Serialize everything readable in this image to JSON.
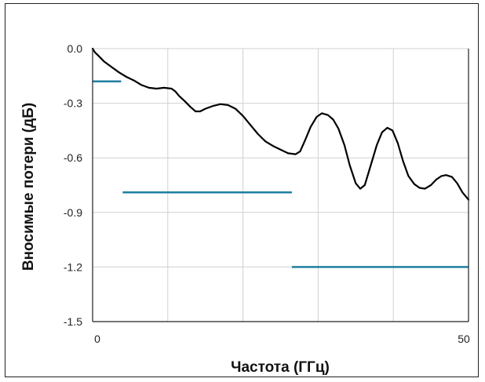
{
  "chart_data": {
    "type": "line",
    "title": "",
    "xlabel": "Частота (ГГц)",
    "ylabel": "Вносимые потери (дБ)",
    "xlim": [
      0,
      50
    ],
    "ylim": [
      -1.5,
      0.0
    ],
    "x_ticks": [
      0,
      50
    ],
    "x_tick_labels": [
      "0",
      "50"
    ],
    "y_ticks": [
      0.0,
      -0.3,
      -0.6,
      -0.9,
      -1.2,
      -1.5
    ],
    "y_tick_labels": [
      "0.0",
      "-0.3",
      "-0.6",
      "-0.9",
      "-1.2",
      "-1.5"
    ],
    "x_gridlines": [
      10,
      20,
      30,
      40
    ],
    "grid": true,
    "legend": "none",
    "colors": {
      "curve": "#000000",
      "limit": "#1f7fa0",
      "grid": "#d0d0d0",
      "axis": "#222222"
    },
    "series": [
      {
        "points": [
          [
            0,
            0.0
          ],
          [
            0.3,
            -0.02
          ],
          [
            0.8,
            -0.04
          ],
          [
            1.5,
            -0.07
          ],
          [
            2.5,
            -0.1
          ],
          [
            3.5,
            -0.13
          ],
          [
            4.5,
            -0.155
          ],
          [
            5.5,
            -0.175
          ],
          [
            6.5,
            -0.2
          ],
          [
            7.5,
            -0.215
          ],
          [
            8.5,
            -0.22
          ],
          [
            9.5,
            -0.215
          ],
          [
            10.5,
            -0.22
          ],
          [
            11.0,
            -0.235
          ],
          [
            11.5,
            -0.26
          ],
          [
            12.3,
            -0.29
          ],
          [
            13.0,
            -0.32
          ],
          [
            13.7,
            -0.345
          ],
          [
            14.3,
            -0.345
          ],
          [
            15.0,
            -0.33
          ],
          [
            16.0,
            -0.315
          ],
          [
            17.0,
            -0.305
          ],
          [
            18.0,
            -0.31
          ],
          [
            19.0,
            -0.33
          ],
          [
            20.0,
            -0.37
          ],
          [
            21.0,
            -0.42
          ],
          [
            22.0,
            -0.47
          ],
          [
            23.0,
            -0.51
          ],
          [
            24.0,
            -0.535
          ],
          [
            25.0,
            -0.555
          ],
          [
            26.0,
            -0.575
          ],
          [
            27.0,
            -0.58
          ],
          [
            27.6,
            -0.565
          ],
          [
            28.3,
            -0.5
          ],
          [
            29.0,
            -0.43
          ],
          [
            29.8,
            -0.375
          ],
          [
            30.5,
            -0.355
          ],
          [
            31.3,
            -0.365
          ],
          [
            32.0,
            -0.39
          ],
          [
            32.7,
            -0.44
          ],
          [
            33.5,
            -0.53
          ],
          [
            34.2,
            -0.64
          ],
          [
            35.0,
            -0.74
          ],
          [
            35.6,
            -0.77
          ],
          [
            36.2,
            -0.75
          ],
          [
            37.0,
            -0.64
          ],
          [
            37.8,
            -0.53
          ],
          [
            38.5,
            -0.46
          ],
          [
            39.2,
            -0.435
          ],
          [
            39.9,
            -0.45
          ],
          [
            40.6,
            -0.52
          ],
          [
            41.3,
            -0.62
          ],
          [
            42.0,
            -0.7
          ],
          [
            42.8,
            -0.745
          ],
          [
            43.5,
            -0.765
          ],
          [
            44.2,
            -0.77
          ],
          [
            45.0,
            -0.75
          ],
          [
            45.7,
            -0.72
          ],
          [
            46.4,
            -0.7
          ],
          [
            47.0,
            -0.695
          ],
          [
            47.8,
            -0.705
          ],
          [
            48.5,
            -0.74
          ],
          [
            49.2,
            -0.79
          ],
          [
            50.0,
            -0.83
          ]
        ]
      },
      {
        "segments": [
          [
            [
              0,
              -0.18
            ],
            [
              3.8,
              -0.18
            ]
          ],
          [
            [
              4.0,
              -0.79
            ],
            [
              26.5,
              -0.79
            ]
          ],
          [
            [
              26.5,
              -1.2
            ],
            [
              50.0,
              -1.2
            ]
          ]
        ]
      }
    ]
  }
}
